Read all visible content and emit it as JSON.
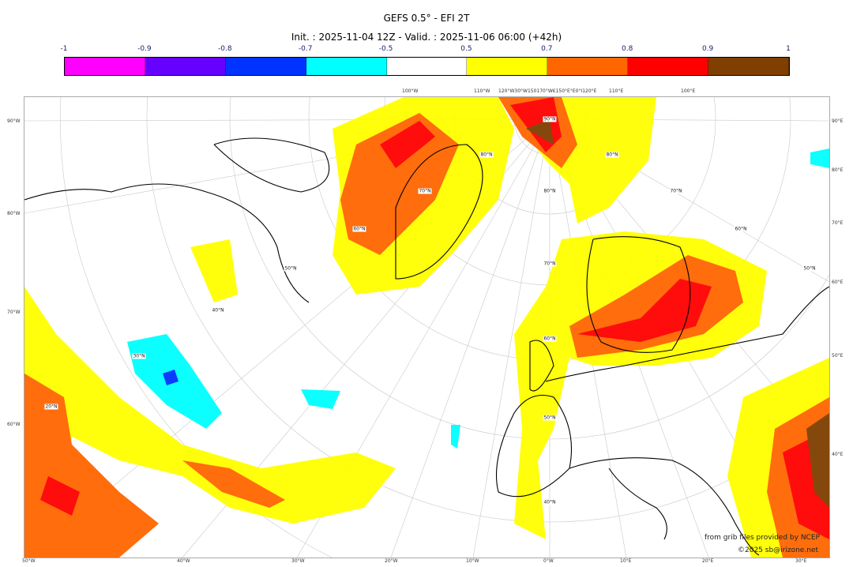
{
  "header": {
    "title": "GEFS 0.5° - EFI 2T",
    "subtitle": "Init. : 2025-11-04 12Z - Valid. : 2025-11-06 06:00 (+42h)"
  },
  "colorbar": {
    "ticks": [
      "-1",
      "-0.9",
      "-0.8",
      "-0.7",
      "-0.5",
      "0.5",
      "0.7",
      "0.8",
      "0.9",
      "1"
    ],
    "colors": [
      "#ff00ff",
      "#6600ff",
      "#0033ff",
      "#00ffff",
      "#ffffff",
      "#ffff00",
      "#ff6600",
      "#ff0000",
      "#7f3f00"
    ]
  },
  "axes": {
    "left": [
      "90°W",
      "80°W",
      "70°W",
      "60°W"
    ],
    "right": [
      "90°E",
      "80°E",
      "70°E",
      "60°E",
      "50°E",
      "40°E"
    ],
    "bottom": [
      "50°W",
      "40°W",
      "30°W",
      "20°W",
      "10°W",
      "0°W",
      "10°E",
      "20°E",
      "30°E"
    ],
    "top": [
      "100°W",
      "110°W",
      "120°W30°W150170°W€150°E°E0°I120°E",
      "110°E",
      "100°E"
    ]
  },
  "latitude_labels": [
    "90°N",
    "80°N",
    "80°N",
    "70°N",
    "80°N",
    "70°N",
    "60°N",
    "60°N",
    "50°N",
    "70°N",
    "50°N",
    "40°N",
    "60°N",
    "30°N",
    "50°N",
    "20°N",
    "40°N"
  ],
  "credits": {
    "line1": "from grib files provided by NCEP",
    "line2": "©2025 sb@irizone.net"
  }
}
